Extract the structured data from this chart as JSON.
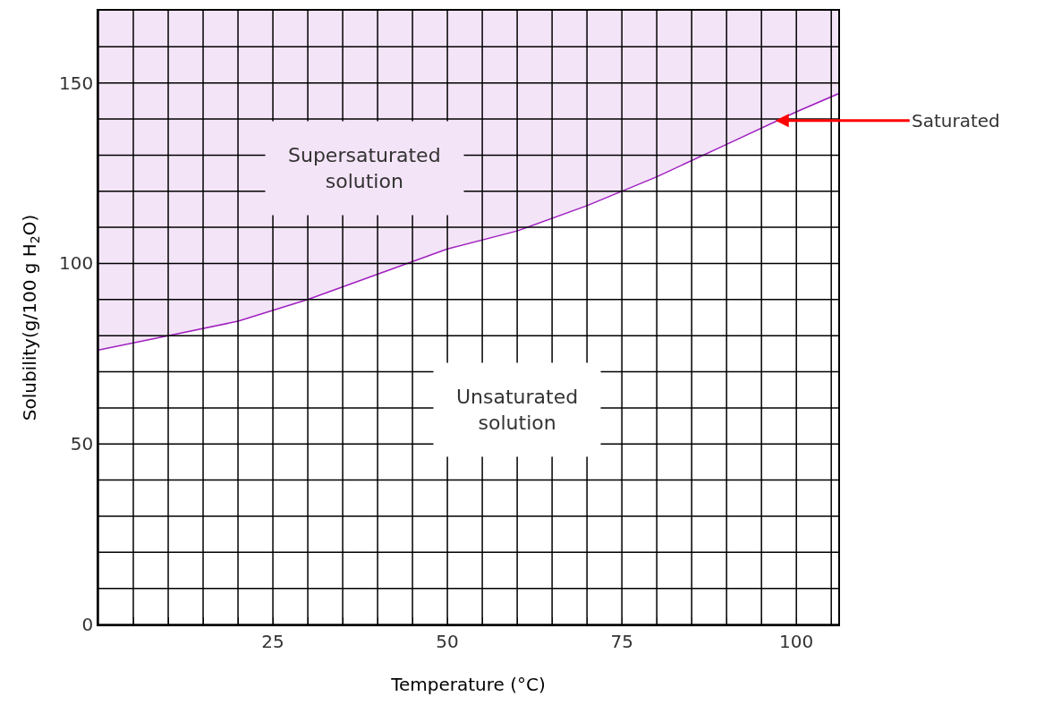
{
  "chart_data": {
    "type": "line",
    "xlabel": "Temperature (°C)",
    "ylabel": "Solubility(g/100 g H$_{2}$O)",
    "x": [
      0,
      10,
      20,
      30,
      40,
      50,
      60,
      70,
      80,
      90,
      100,
      106
    ],
    "series": [
      {
        "color": "#a020c0",
        "values": [
          76,
          80,
          84,
          90,
          97,
          104,
          109,
          116,
          124,
          133,
          142,
          147
        ],
        "lower": [
          76,
          80,
          84,
          90,
          97,
          104,
          109,
          116,
          124,
          133,
          142,
          147
        ],
        "upper": [
          170,
          170,
          170,
          170,
          170,
          170,
          170,
          170,
          170,
          170,
          170,
          170
        ]
      }
    ],
    "xlim": [
      0,
      106
    ],
    "ylim": [
      0,
      170
    ],
    "xticks": [
      {
        "value": 0,
        "label": null
      },
      {
        "value": 5,
        "label": null
      },
      {
        "value": 10,
        "label": null
      },
      {
        "value": 15,
        "label": null
      },
      {
        "value": 20,
        "label": null
      },
      25,
      {
        "value": 30,
        "label": null
      },
      {
        "value": 35,
        "label": null
      },
      {
        "value": 40,
        "label": null
      },
      {
        "value": 45,
        "label": null
      },
      50,
      {
        "value": 55,
        "label": null
      },
      {
        "value": 60,
        "label": null
      },
      {
        "value": 65,
        "label": null
      },
      {
        "value": 70,
        "label": null
      },
      75,
      {
        "value": 80,
        "label": null
      },
      {
        "value": 85,
        "label": null
      },
      {
        "value": 90,
        "label": null
      },
      {
        "value": 95,
        "label": null
      },
      100,
      {
        "value": 105,
        "label": null
      }
    ],
    "yticks": [
      0,
      {
        "value": 10,
        "label": null
      },
      {
        "value": 20,
        "label": null
      },
      {
        "value": 30,
        "label": null
      },
      {
        "value": 40,
        "label": null
      },
      50,
      {
        "value": 60,
        "label": null
      },
      {
        "value": 70,
        "label": null
      },
      {
        "value": 80,
        "label": null
      },
      {
        "value": 90,
        "label": null
      },
      100,
      {
        "value": 110,
        "label": null
      },
      {
        "value": 120,
        "label": null
      },
      {
        "value": 130,
        "label": null
      },
      {
        "value": 140,
        "label": null
      },
      150,
      {
        "value": 160,
        "label": null
      }
    ],
    "grid": true,
    "marker": "none",
    "line_style": "solid",
    "annotations": [
      "Supersaturated\nsolution",
      "Unsaturated\nsolution",
      {
        "text": "Saturated",
        "x": 97,
        "y": 139.6
      }
    ]
  }
}
